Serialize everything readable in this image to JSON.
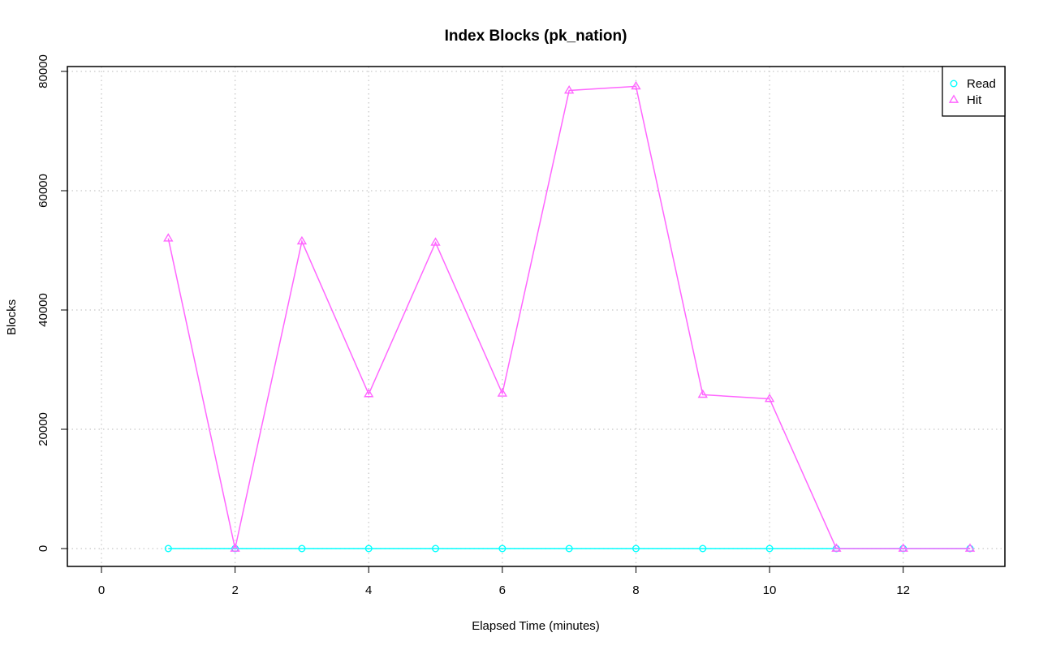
{
  "chart_data": {
    "type": "line",
    "title": "Index Blocks (pk_nation)",
    "xlabel": "Elapsed Time (minutes)",
    "ylabel": "Blocks",
    "xlim": [
      0,
      13
    ],
    "ylim": [
      0,
      80000
    ],
    "x_ticks": [
      0,
      2,
      4,
      6,
      8,
      10,
      12
    ],
    "y_ticks": [
      0,
      20000,
      40000,
      60000,
      80000
    ],
    "grid": true,
    "legend_position": "top-right",
    "x": [
      1,
      2,
      3,
      4,
      5,
      6,
      7,
      8,
      9,
      10,
      11,
      12,
      13
    ],
    "series": [
      {
        "name": "Read",
        "color": "#00ffff",
        "marker": "circle",
        "values": [
          0,
          0,
          0,
          0,
          0,
          0,
          0,
          0,
          0,
          0,
          0,
          0,
          0
        ]
      },
      {
        "name": "Hit",
        "color": "#ff66ff",
        "marker": "triangle",
        "values": [
          52000,
          0,
          51500,
          25900,
          51300,
          26000,
          76800,
          77500,
          25800,
          25100,
          0,
          0,
          0
        ]
      }
    ]
  }
}
